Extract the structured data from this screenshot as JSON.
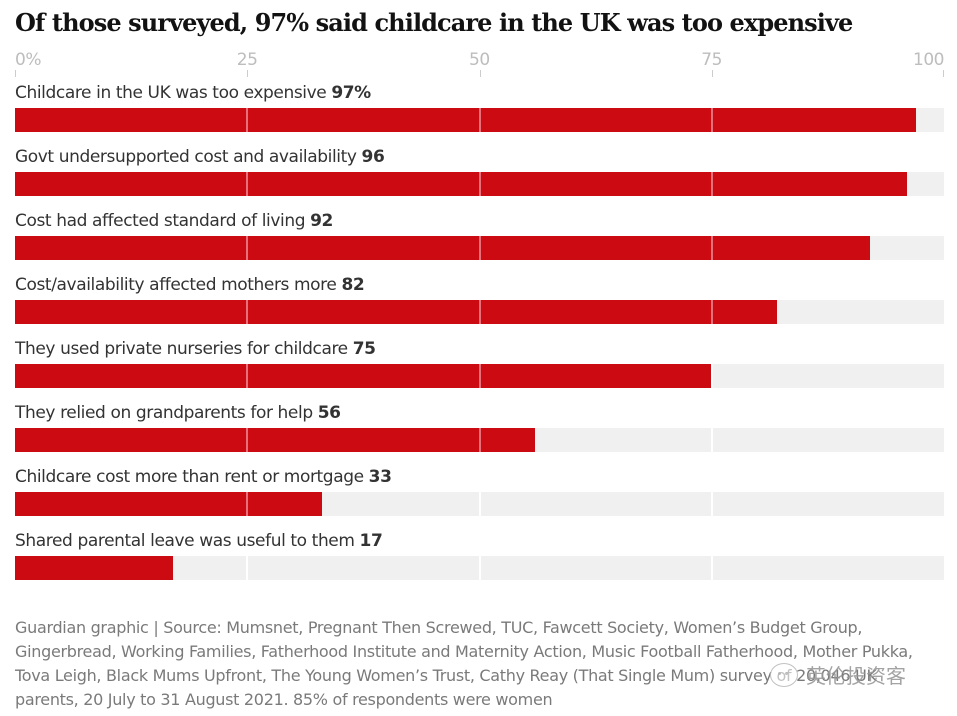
{
  "chart_data": {
    "type": "bar",
    "orientation": "horizontal",
    "title": "Of those surveyed, 97% said childcare in the UK was too expensive",
    "xlabel": "",
    "ylabel": "",
    "xlim": [
      0,
      100
    ],
    "x_ticks": [
      0,
      25,
      50,
      75,
      100
    ],
    "x_tick_labels": [
      "0%",
      "25",
      "50",
      "75",
      "100"
    ],
    "grid": true,
    "categories": [
      "Childcare in the UK was too expensive",
      "Govt undersupported cost and availability",
      "Cost had affected standard of living",
      "Cost/availability affected mothers more",
      "They used private nurseries for childcare",
      "They relied on grandparents for help",
      "Childcare cost more than rent or mortgage",
      "Shared parental leave was useful to them"
    ],
    "values": [
      97,
      96,
      92,
      82,
      75,
      56,
      33,
      17
    ],
    "value_labels": [
      "97%",
      "96",
      "92",
      "82",
      "75",
      "56",
      "33",
      "17"
    ],
    "colors": {
      "bar": "#cc0a11",
      "background_track": "#f0f0f0",
      "grid_on_bar": "#e8707a",
      "grid_on_track": "#ffffff",
      "title": "#121212",
      "label": "#333333",
      "tick": "#bdbdbd",
      "source": "#7a7a7a"
    }
  },
  "source_text": "Guardian graphic | Source: Mumsnet, Pregnant Then Screwed, TUC, Fawcett Society, Women’s Budget Group, Gingerbread, Working Families, Fatherhood Institute and Maternity Action, Music Football Fatherhood, Mother Pukka, Tova Leigh, Black Mums Upfront, The Young Women’s Trust, Cathy Reay (That Single Mum) survey of 20,046 UK parents, 20 July to 31 August 2021. 85% of respondents were women",
  "watermark": {
    "icon": "wechat-icon",
    "text": "英伦投资客"
  }
}
